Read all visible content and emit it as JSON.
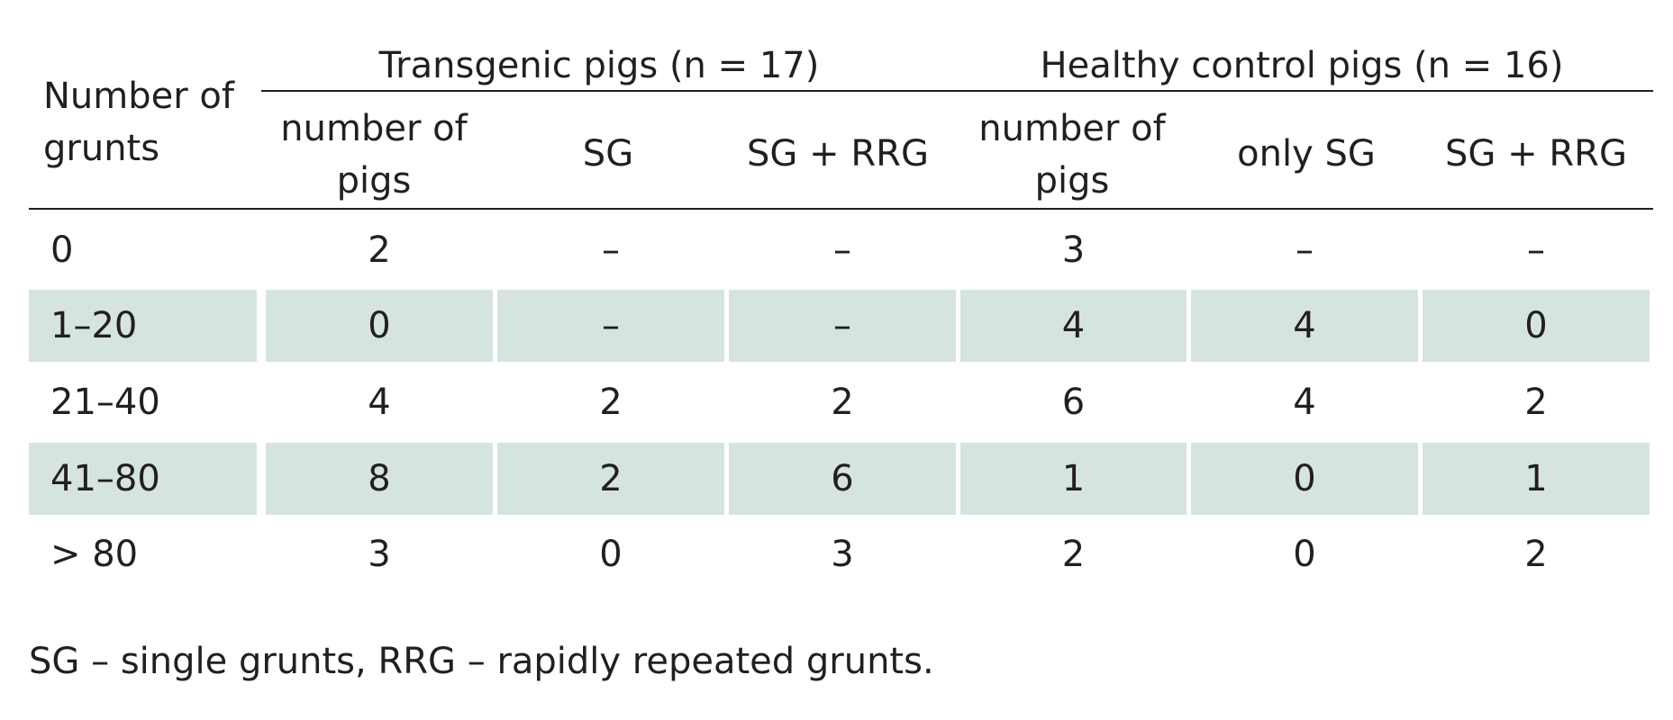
{
  "table": {
    "row_header": "Number of grunts",
    "group_headers": [
      "Transgenic pigs (n = 17)",
      "Healthy control pigs (n = 16)"
    ],
    "column_headers": [
      "number of pigs",
      "SG",
      "SG + RRG",
      "number of pigs",
      "only SG",
      "SG + RRG"
    ],
    "rows": [
      {
        "label": "0",
        "values": [
          "2",
          "–",
          "–",
          "3",
          "–",
          "–"
        ],
        "shaded": false
      },
      {
        "label": "1–20",
        "values": [
          "0",
          "–",
          "–",
          "4",
          "4",
          "0"
        ],
        "shaded": true
      },
      {
        "label": "21–40",
        "values": [
          "4",
          "2",
          "2",
          "6",
          "4",
          "2"
        ],
        "shaded": false
      },
      {
        "label": "41–80",
        "values": [
          "8",
          "2",
          "6",
          "1",
          "0",
          "1"
        ],
        "shaded": true
      },
      {
        "label": "> 80",
        "values": [
          "3",
          "0",
          "3",
          "2",
          "0",
          "2"
        ],
        "shaded": false
      }
    ],
    "footnote": "SG – single grunts, RRG – rapidly repeated grunts.",
    "colors": {
      "stripe": "#d6e4e0",
      "text": "#231f20",
      "rule": "#231f20"
    }
  }
}
